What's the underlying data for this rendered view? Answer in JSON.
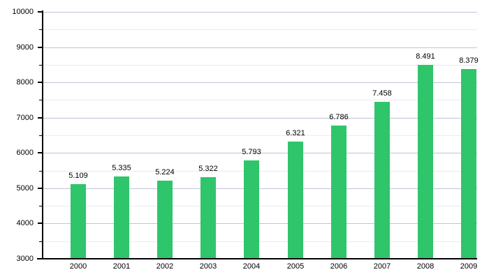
{
  "chart_data": {
    "type": "bar",
    "title": "",
    "xlabel": "",
    "ylabel": "",
    "categories": [
      "2000",
      "2001",
      "2002",
      "2003",
      "2004",
      "2005",
      "2006",
      "2007",
      "2008",
      "2009"
    ],
    "values": [
      5109,
      5335,
      5224,
      5322,
      5793,
      6321,
      6786,
      7458,
      8491,
      8379
    ],
    "value_labels": [
      "5.109",
      "5.335",
      "5.224",
      "5.322",
      "5.793",
      "6.321",
      "6.786",
      "7.458",
      "8.491",
      "8.379"
    ],
    "ylim": [
      3000,
      10000
    ],
    "y_major_step": 1000,
    "y_minor_step": 500,
    "y_tick_labels": [
      "3000",
      "4000",
      "5000",
      "6000",
      "7000",
      "8000",
      "9000",
      "10000"
    ],
    "grid": true,
    "legend": "none",
    "colors": {
      "bar_fill": "#2fc56a",
      "axis": "#000000",
      "major_gridline": "#bfc3da",
      "minor_gridline": "#e9eaf4",
      "label_text": "#000000",
      "background": "#ffffff"
    }
  }
}
